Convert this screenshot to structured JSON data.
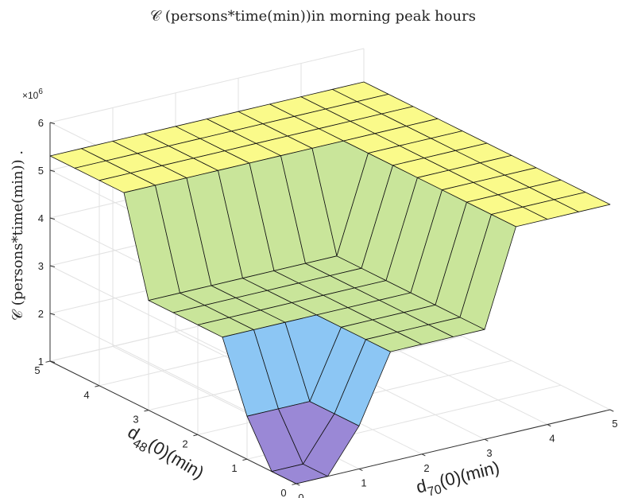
{
  "chart_data": {
    "type": "surface",
    "title": "𝒞 (persons*time(min))in morning peak hours",
    "zlabel": "𝒞 (persons*time(min)) .",
    "xlabel": {
      "base": "d",
      "sub": "70",
      "rest": "(0)(min)"
    },
    "ylabel": {
      "base": "d",
      "sub": "48",
      "rest": "(0)(min)"
    },
    "exponent_label": {
      "base": "×10",
      "exp": "6"
    },
    "xlim": [
      0,
      5
    ],
    "ylim": [
      0,
      5
    ],
    "zlim": [
      1,
      6
    ],
    "x_ticks": [
      "0",
      "1",
      "2",
      "3",
      "4",
      "5"
    ],
    "y_ticks": [
      "0",
      "1",
      "2",
      "3",
      "4",
      "5"
    ],
    "z_ticks": [
      "1",
      "2",
      "3",
      "4",
      "5",
      "6"
    ],
    "grid": true,
    "x": [
      0,
      0.5,
      1,
      1.5,
      2,
      2.5,
      3,
      3.5,
      4,
      4.5,
      5
    ],
    "y": [
      0,
      0.5,
      1,
      1.5,
      2,
      2.5,
      3,
      3.5,
      4,
      4.5,
      5
    ],
    "z_note": "C = 5.3e6 where x>=3.5 or y>=3.5; 3.3e6 where 1.5<=max(x,y)<=2.5; 1.9e6 where max(x,y)=1; 1.0e6 at origin",
    "levels": {
      "origin": 1.0,
      "ring1": 1.9,
      "middle": 3.3,
      "top": 5.3
    },
    "colors": {
      "top": "#fafa8a",
      "green": "#c9e59a",
      "blue": "#8cc6f4",
      "purple": "#9a88d6",
      "edge": "#111111",
      "grid": "#e2e2e2",
      "axis": "#333333"
    }
  }
}
